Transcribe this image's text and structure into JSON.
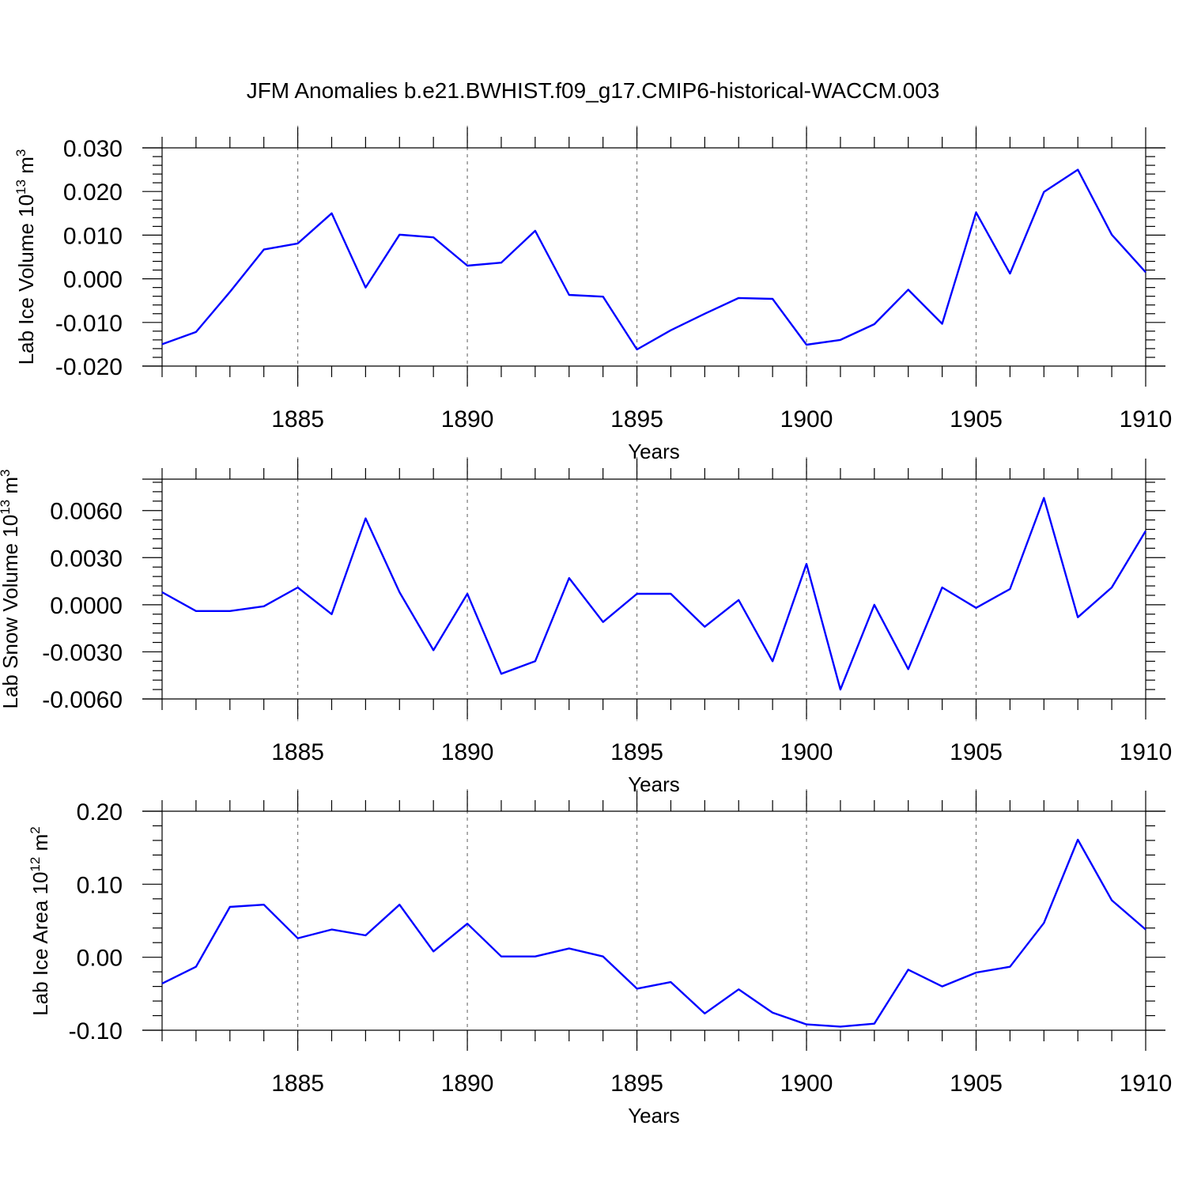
{
  "title": "JFM Anomalies b.e21.BWHIST.f09_g17.CMIP6-historical-WACCM.003",
  "line_color": "#0000ff",
  "chart_data": [
    {
      "type": "line",
      "ylabel": "Lab Ice Volume 10",
      "ylabel_exp": "13",
      "ylabel_unit": " m",
      "ylabel_unit_exp": "3",
      "xlabel": "Years",
      "xlim": [
        1881,
        1910
      ],
      "ylim": [
        -0.02,
        0.03
      ],
      "x_ticks": [
        1885,
        1890,
        1895,
        1900,
        1905,
        1910
      ],
      "x_tick_labels": [
        "1885",
        "1890",
        "1895",
        "1900",
        "1905",
        "1910"
      ],
      "y_ticks": [
        -0.02,
        -0.01,
        0.0,
        0.01,
        0.02,
        0.03
      ],
      "y_tick_labels": [
        "-0.020",
        "-0.010",
        "0.000",
        "0.010",
        "0.020",
        "0.030"
      ],
      "x": [
        1881,
        1882,
        1883,
        1884,
        1885,
        1886,
        1887,
        1888,
        1889,
        1890,
        1891,
        1892,
        1893,
        1894,
        1895,
        1896,
        1897,
        1898,
        1899,
        1900,
        1901,
        1902,
        1903,
        1904,
        1905,
        1906,
        1907,
        1908,
        1909,
        1910
      ],
      "values": [
        -0.015,
        -0.0122,
        -0.003,
        0.0067,
        0.0081,
        0.015,
        -0.002,
        0.0101,
        0.0095,
        0.003,
        0.0037,
        0.011,
        -0.0037,
        -0.0041,
        -0.0162,
        -0.0118,
        -0.008,
        -0.0044,
        -0.0046,
        -0.0151,
        -0.014,
        -0.0104,
        -0.0025,
        -0.0103,
        0.0152,
        0.0012,
        0.0199,
        0.025,
        0.0101,
        0.0015
      ]
    },
    {
      "type": "line",
      "ylabel": "Lab Snow Volume 10",
      "ylabel_exp": "13",
      "ylabel_unit": " m",
      "ylabel_unit_exp": "3",
      "xlabel": "Years",
      "xlim": [
        1881,
        1910
      ],
      "ylim": [
        -0.006,
        0.008
      ],
      "x_ticks": [
        1885,
        1890,
        1895,
        1900,
        1905,
        1910
      ],
      "x_tick_labels": [
        "1885",
        "1890",
        "1895",
        "1900",
        "1905",
        "1910"
      ],
      "y_ticks": [
        -0.006,
        -0.003,
        0.0,
        0.003,
        0.006
      ],
      "y_tick_labels": [
        "-0.0060",
        "-0.0030",
        "0.0000",
        "0.0030",
        "0.0060"
      ],
      "x": [
        1881,
        1882,
        1883,
        1884,
        1885,
        1886,
        1887,
        1888,
        1889,
        1890,
        1891,
        1892,
        1893,
        1894,
        1895,
        1896,
        1897,
        1898,
        1899,
        1900,
        1901,
        1902,
        1903,
        1904,
        1905,
        1906,
        1907,
        1908,
        1909,
        1910
      ],
      "values": [
        0.0008,
        -0.0004,
        -0.0004,
        -0.0001,
        0.0011,
        -0.0006,
        0.0055,
        0.0008,
        -0.0029,
        0.0007,
        -0.0044,
        -0.0036,
        0.0017,
        -0.0011,
        0.0007,
        0.0007,
        -0.0014,
        0.0003,
        -0.0036,
        0.0026,
        -0.0054,
        0.0,
        -0.0041,
        0.0011,
        -0.0002,
        0.001,
        0.0068,
        -0.0008,
        0.0011,
        0.0047
      ]
    },
    {
      "type": "line",
      "ylabel": "Lab Ice Area 10",
      "ylabel_exp": "12",
      "ylabel_unit": " m",
      "ylabel_unit_exp": "2",
      "xlabel": "Years",
      "xlim": [
        1881,
        1910
      ],
      "ylim": [
        -0.1,
        0.2
      ],
      "x_ticks": [
        1885,
        1890,
        1895,
        1900,
        1905,
        1910
      ],
      "x_tick_labels": [
        "1885",
        "1890",
        "1895",
        "1900",
        "1905",
        "1910"
      ],
      "y_ticks": [
        -0.1,
        0.0,
        0.1,
        0.2
      ],
      "y_tick_labels": [
        "-0.10",
        "0.00",
        "0.10",
        "0.20"
      ],
      "x": [
        1881,
        1882,
        1883,
        1884,
        1885,
        1886,
        1887,
        1888,
        1889,
        1890,
        1891,
        1892,
        1893,
        1894,
        1895,
        1896,
        1897,
        1898,
        1899,
        1900,
        1901,
        1902,
        1903,
        1904,
        1905,
        1906,
        1907,
        1908,
        1909,
        1910
      ],
      "values": [
        -0.036,
        -0.013,
        0.069,
        0.072,
        0.026,
        0.038,
        0.03,
        0.072,
        0.008,
        0.046,
        0.001,
        0.001,
        0.012,
        0.001,
        -0.043,
        -0.034,
        -0.077,
        -0.044,
        -0.076,
        -0.092,
        -0.095,
        -0.091,
        -0.017,
        -0.04,
        -0.021,
        -0.013,
        0.047,
        0.161,
        0.078,
        0.038
      ]
    }
  ]
}
